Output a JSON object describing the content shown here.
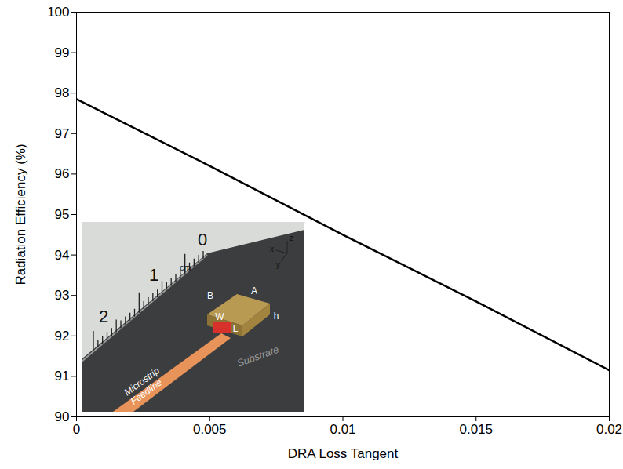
{
  "chart_data": {
    "type": "line",
    "x_label": "DRA Loss Tangent",
    "y_label": "Radiation Efficiency (%)",
    "x": [
      0,
      0.005,
      0.01,
      0.015,
      0.02
    ],
    "series": [
      {
        "name": "Radiation Efficiency",
        "color": "#000000",
        "values": [
          97.85,
          96.2,
          94.5,
          92.85,
          91.15
        ]
      }
    ],
    "xlim": [
      0,
      0.02
    ],
    "xticks": [
      0,
      0.005,
      0.01,
      0.015,
      0.02
    ],
    "ylim": [
      90,
      100
    ],
    "yticks": [
      90,
      91,
      92,
      93,
      94,
      95,
      96,
      97,
      98,
      99,
      100
    ],
    "grid": false,
    "inset": {
      "feedline_label": [
        "Microstrip",
        "Feedline"
      ],
      "substrate_label": "Substrate",
      "dimension_labels": [
        "A",
        "B",
        "W",
        "L",
        "h"
      ],
      "axis_labels": [
        "x",
        "y",
        "z"
      ],
      "ruler_labels": [
        "2",
        "1",
        "0",
        "cm"
      ]
    }
  }
}
